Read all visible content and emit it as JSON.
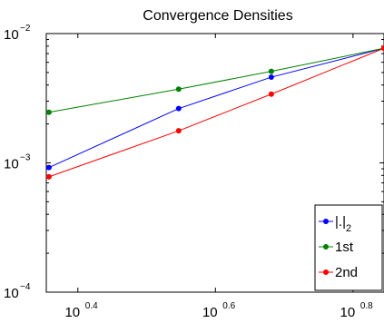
{
  "chart_data": {
    "type": "line",
    "title": "Convergence Densities",
    "xscale": "log",
    "yscale": "log",
    "xlim": [
      2.26,
      7.0
    ],
    "ylim": [
      0.0001,
      0.01
    ],
    "grid": false,
    "legend_position": "bottom-right",
    "x_ticks": [
      {
        "base": "10",
        "exp": "0.4",
        "value": 2.512
      },
      {
        "base": "10",
        "exp": "0.6",
        "value": 3.981
      },
      {
        "base": "10",
        "exp": "0.8",
        "value": 6.31
      }
    ],
    "y_ticks": [
      {
        "base": "10",
        "exp": "−2",
        "value": 0.01
      },
      {
        "base": "10",
        "exp": "−3",
        "value": 0.001
      },
      {
        "base": "10",
        "exp": "−4",
        "value": 0.0001
      }
    ],
    "x": [
      2.28,
      3.52,
      4.8,
      7.0
    ],
    "series": [
      {
        "name": "|.|",
        "name_sub": "2",
        "color": "#0000ff",
        "values": [
          0.00092,
          0.00263,
          0.0046,
          0.0077
        ]
      },
      {
        "name": "1st",
        "name_sub": "",
        "color": "#008000",
        "values": [
          0.00246,
          0.00372,
          0.0051,
          0.0077
        ]
      },
      {
        "name": "2nd",
        "name_sub": "",
        "color": "#ff0000",
        "values": [
          0.00078,
          0.00177,
          0.0034,
          0.0077
        ]
      }
    ]
  }
}
